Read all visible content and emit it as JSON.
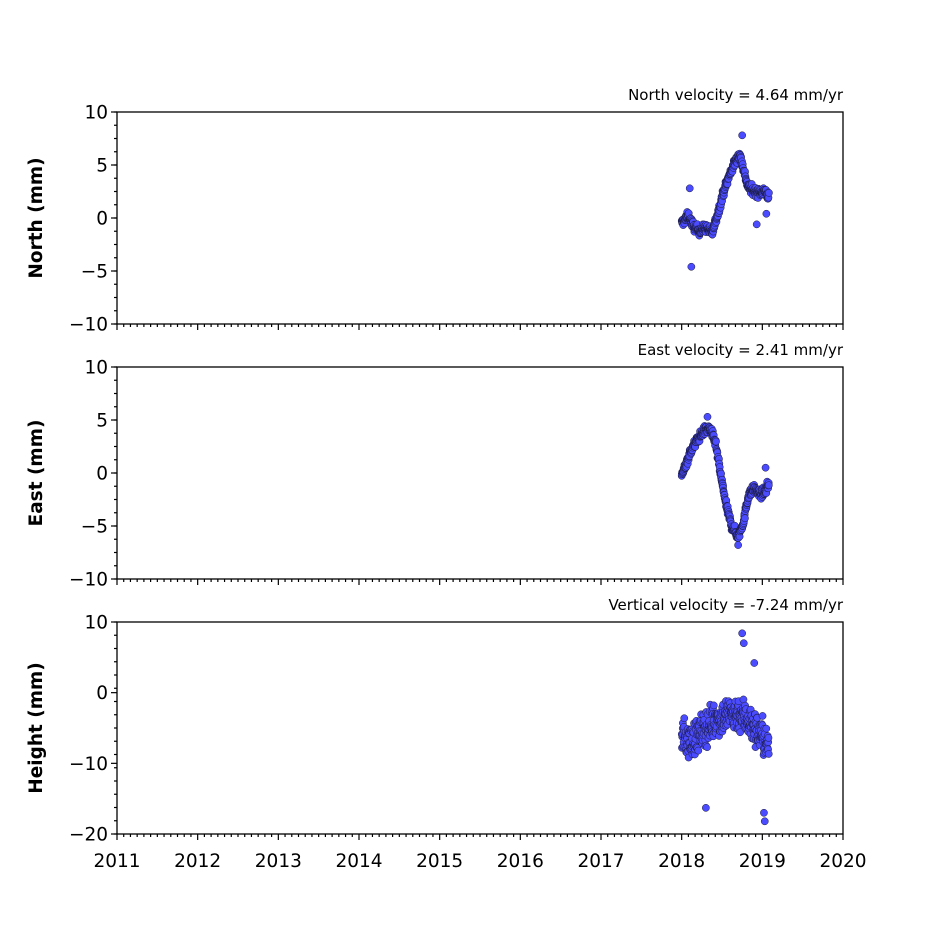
{
  "chart_data": [
    {
      "type": "scatter",
      "title": "North velocity = 4.64 mm/yr",
      "ylabel": "North (mm)",
      "xlabel": "",
      "xlim": [
        2011,
        2020
      ],
      "ylim": [
        -10,
        10
      ],
      "yticks": [
        10,
        5,
        0,
        -5,
        -10
      ],
      "color": "#4b4bff",
      "trend": [
        [
          2018.0,
          -0.5
        ],
        [
          2018.08,
          0.2
        ],
        [
          2018.15,
          -0.8
        ],
        [
          2018.22,
          -1.2
        ],
        [
          2018.3,
          -0.9
        ],
        [
          2018.38,
          -1.4
        ],
        [
          2018.45,
          0.5
        ],
        [
          2018.52,
          2.5
        ],
        [
          2018.6,
          4.2
        ],
        [
          2018.67,
          5.4
        ],
        [
          2018.72,
          6.0
        ],
        [
          2018.77,
          4.5
        ],
        [
          2018.82,
          3.0
        ],
        [
          2018.88,
          2.6
        ],
        [
          2018.95,
          2.4
        ],
        [
          2019.03,
          2.6
        ],
        [
          2019.08,
          2.0
        ]
      ],
      "outliers": [
        [
          2018.12,
          -4.6
        ],
        [
          2018.1,
          2.8
        ],
        [
          2018.75,
          7.8
        ],
        [
          2018.93,
          -0.6
        ],
        [
          2019.05,
          0.4
        ]
      ]
    },
    {
      "type": "scatter",
      "title": "East velocity = 2.41 mm/yr",
      "ylabel": "East (mm)",
      "xlabel": "",
      "xlim": [
        2011,
        2020
      ],
      "ylim": [
        -10,
        10
      ],
      "yticks": [
        10,
        5,
        0,
        -5,
        -10
      ],
      "color": "#4b4bff",
      "trend": [
        [
          2018.0,
          -0.3
        ],
        [
          2018.06,
          1.0
        ],
        [
          2018.12,
          2.2
        ],
        [
          2018.2,
          3.2
        ],
        [
          2018.28,
          4.0
        ],
        [
          2018.35,
          4.2
        ],
        [
          2018.42,
          2.8
        ],
        [
          2018.48,
          0.0
        ],
        [
          2018.55,
          -3.0
        ],
        [
          2018.62,
          -5.0
        ],
        [
          2018.7,
          -6.0
        ],
        [
          2018.77,
          -4.5
        ],
        [
          2018.83,
          -2.0
        ],
        [
          2018.9,
          -1.5
        ],
        [
          2018.97,
          -2.0
        ],
        [
          2019.03,
          -1.8
        ],
        [
          2019.08,
          -1.0
        ]
      ],
      "outliers": [
        [
          2018.32,
          5.3
        ],
        [
          2018.7,
          -6.8
        ],
        [
          2019.04,
          0.5
        ]
      ]
    },
    {
      "type": "scatter",
      "title": "Vertical velocity = -7.24 mm/yr",
      "ylabel": "Height (mm)",
      "xlabel": "",
      "xlim": [
        2011,
        2020
      ],
      "ylim": [
        -20,
        10
      ],
      "yticks": [
        10,
        0,
        -10,
        -20
      ],
      "color": "#4b4bff",
      "trend": [
        [
          2018.0,
          -6.0
        ],
        [
          2018.1,
          -7.0
        ],
        [
          2018.2,
          -6.0
        ],
        [
          2018.3,
          -5.0
        ],
        [
          2018.4,
          -4.0
        ],
        [
          2018.5,
          -3.5
        ],
        [
          2018.6,
          -3.0
        ],
        [
          2018.7,
          -3.0
        ],
        [
          2018.8,
          -3.5
        ],
        [
          2018.9,
          -5.0
        ],
        [
          2019.0,
          -6.0
        ],
        [
          2019.08,
          -8.0
        ]
      ],
      "outliers": [
        [
          2018.75,
          8.4
        ],
        [
          2018.77,
          7.0
        ],
        [
          2019.03,
          -18.2
        ],
        [
          2019.02,
          -17.0
        ],
        [
          2018.3,
          -16.3
        ],
        [
          2018.9,
          4.2
        ]
      ]
    }
  ],
  "xaxis": {
    "tick_labels": [
      "2011",
      "2012",
      "2013",
      "2014",
      "2015",
      "2016",
      "2017",
      "2018",
      "2019",
      "2020"
    ]
  }
}
